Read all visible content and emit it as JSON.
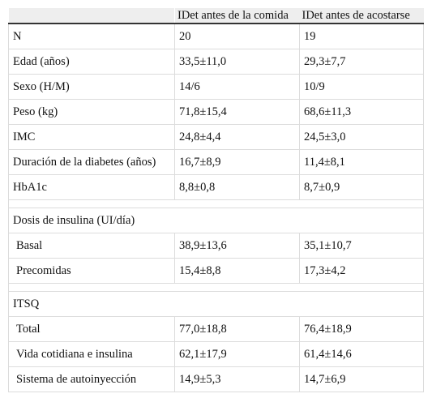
{
  "header": {
    "col0": "",
    "col1": "IDet antes de la comida",
    "col2": "IDet antes de acostarse"
  },
  "rows_top": [
    {
      "label": "N",
      "v1": "20",
      "v2": "19"
    },
    {
      "label": "Edad (años)",
      "v1": "33,5±11,0",
      "v2": "29,3±7,7"
    },
    {
      "label": "Sexo (H/M)",
      "v1": "14/6",
      "v2": "10/9"
    },
    {
      "label": "Peso (kg)",
      "v1": "71,8±15,4",
      "v2": "68,6±11,3"
    },
    {
      "label": "IMC",
      "v1": "24,8±4,4",
      "v2": "24,5±3,0"
    },
    {
      "label": "Duración de la diabetes (años)",
      "v1": "16,7±8,9",
      "v2": "11,4±8,1"
    },
    {
      "label": "HbA1c",
      "v1": "8,8±0,8",
      "v2": "8,7±0,9"
    }
  ],
  "section_insulin": {
    "title": "Dosis de insulina (UI/día)",
    "rows": [
      {
        "label": "Basal",
        "v1": "38,9±13,6",
        "v2": "35,1±10,7"
      },
      {
        "label": "Precomidas",
        "v1": "15,4±8,8",
        "v2": "17,3±4,2"
      }
    ]
  },
  "section_itsq": {
    "title": "ITSQ",
    "rows": [
      {
        "label": "Total",
        "v1": "77,0±18,8",
        "v2": "76,4±18,9"
      },
      {
        "label": "Vida cotidiana e insulina",
        "v1": "62,1±17,9",
        "v2": "61,4±14,6"
      },
      {
        "label": "Sistema de autoinyección",
        "v1": "14,9±5,3",
        "v2": "14,7±6,9"
      }
    ]
  }
}
